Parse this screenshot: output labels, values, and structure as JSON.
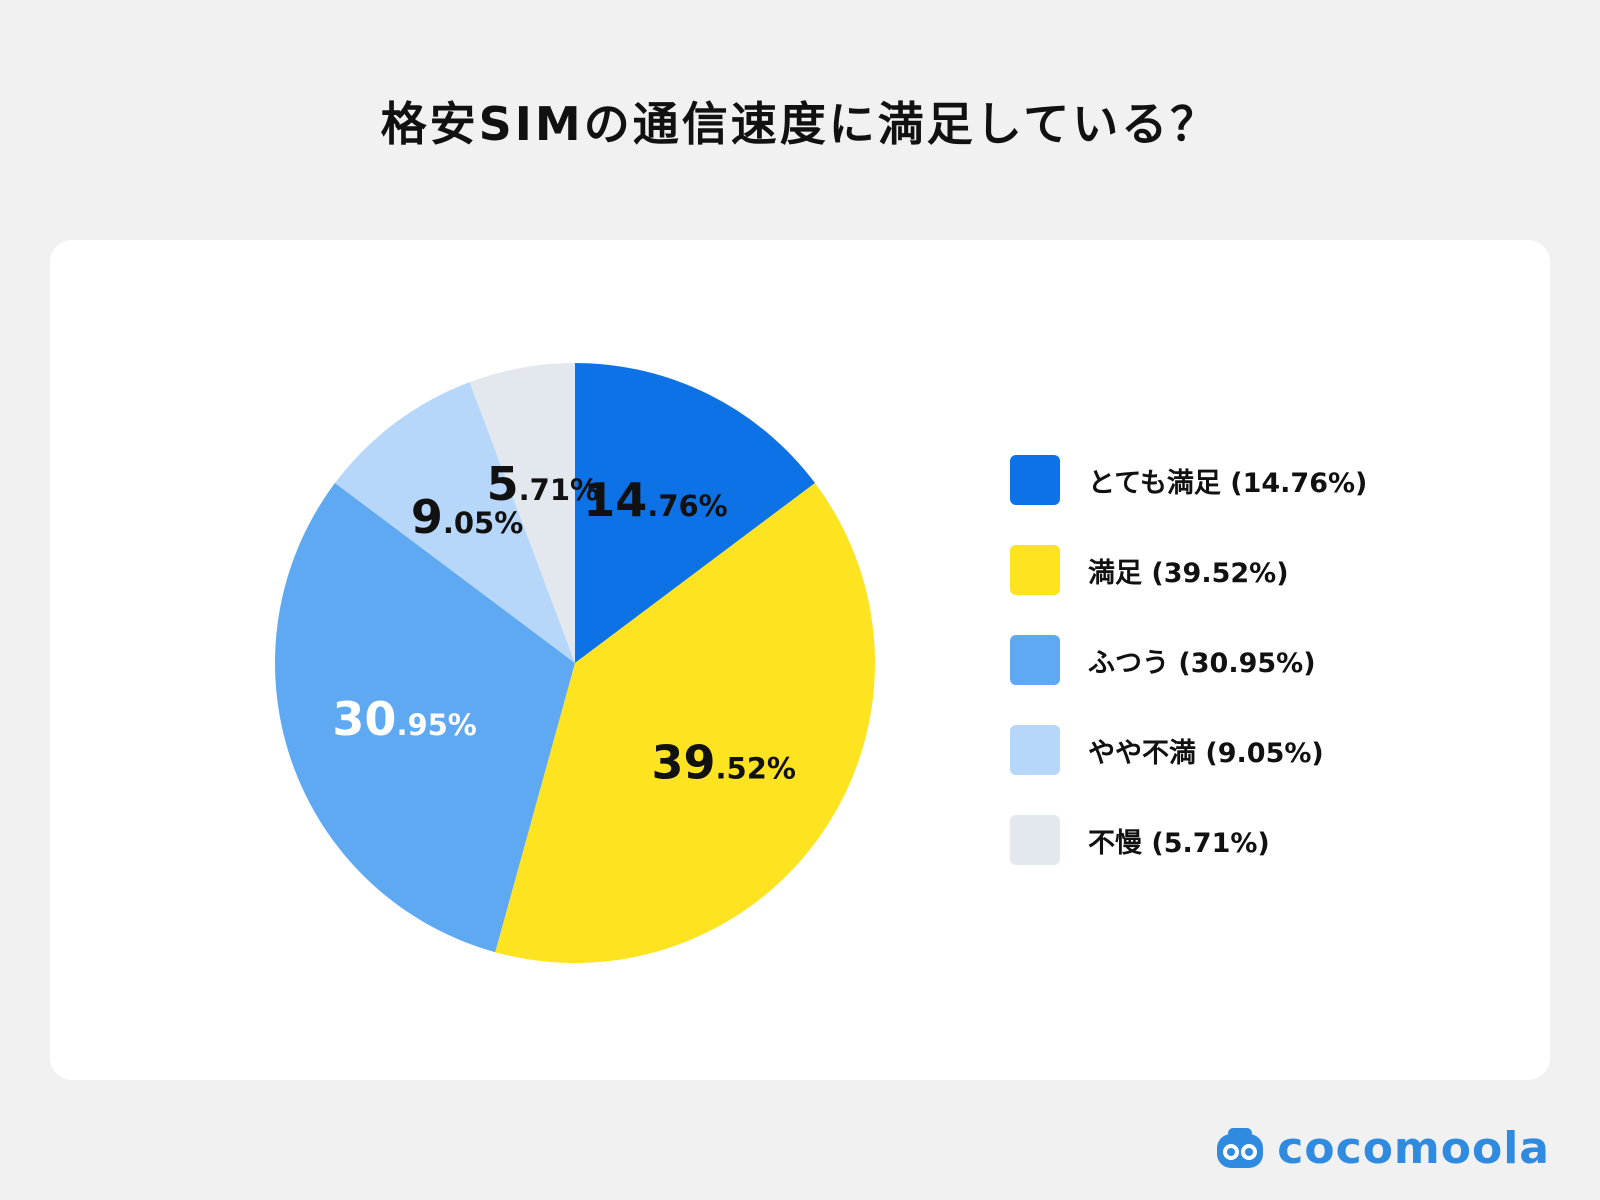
{
  "chart_data": {
    "type": "pie",
    "title": "格安SIMの通信速度に満足している？",
    "slices": [
      {
        "label": "とても満足",
        "value": 14.76,
        "int": "14",
        "frac": ".76%",
        "color": "#0d72e6",
        "label_color": "#111111",
        "legend": "とても満足 (14.76%)"
      },
      {
        "label": "満足",
        "value": 39.52,
        "int": "39",
        "frac": ".52%",
        "color": "#fde320",
        "label_color": "#111111",
        "legend": "満足 (39.52%)"
      },
      {
        "label": "ふつう",
        "value": 30.95,
        "int": "30",
        "frac": ".95%",
        "color": "#5ea9f2",
        "label_color": "#ffffff",
        "legend": "ふつう (30.95%)"
      },
      {
        "label": "やや不満",
        "value": 9.05,
        "int": "9",
        "frac": ".05%",
        "color": "#b6d6fa",
        "label_color": "#111111",
        "legend": "やや不満 (9.05%)"
      },
      {
        "label": "不慢",
        "value": 5.71,
        "int": "5",
        "frac": ".71%",
        "color": "#e3e7ee",
        "label_color": "#111111",
        "legend": "不慢 (5.71%)"
      }
    ],
    "legend_position": "right"
  },
  "brand": {
    "name": "cocomoola",
    "color": "#2f8be0"
  }
}
